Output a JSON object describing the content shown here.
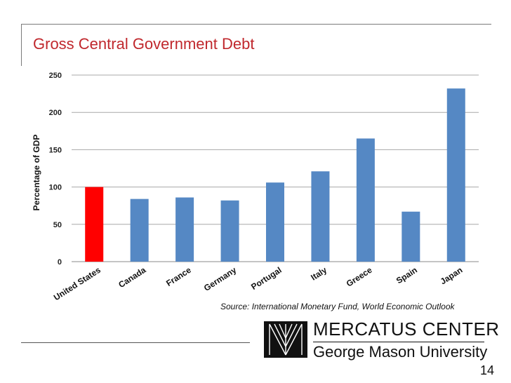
{
  "slide": {
    "title": "Gross Central Government Debt",
    "source": "Source: International Monetary Fund, World Economic Outlook",
    "logo_line1": "MERCATUS CENTER",
    "logo_line2": "George Mason University",
    "page_number": "14"
  },
  "colors": {
    "title": "#c0282d",
    "bar_default": "#5588c4",
    "bar_highlight": "#ff0000"
  },
  "chart_data": {
    "type": "bar",
    "title": "",
    "xlabel": "",
    "ylabel": "Percentage of GDP",
    "ylim": [
      0,
      250
    ],
    "yticks": [
      0,
      50,
      100,
      150,
      200,
      250
    ],
    "grid": true,
    "categories": [
      "United States",
      "Canada",
      "France",
      "Germany",
      "Portugal",
      "Italy",
      "Greece",
      "Spain",
      "Japan"
    ],
    "values": [
      100,
      84,
      86,
      82,
      106,
      121,
      165,
      67,
      232
    ],
    "highlight_index": 0
  }
}
